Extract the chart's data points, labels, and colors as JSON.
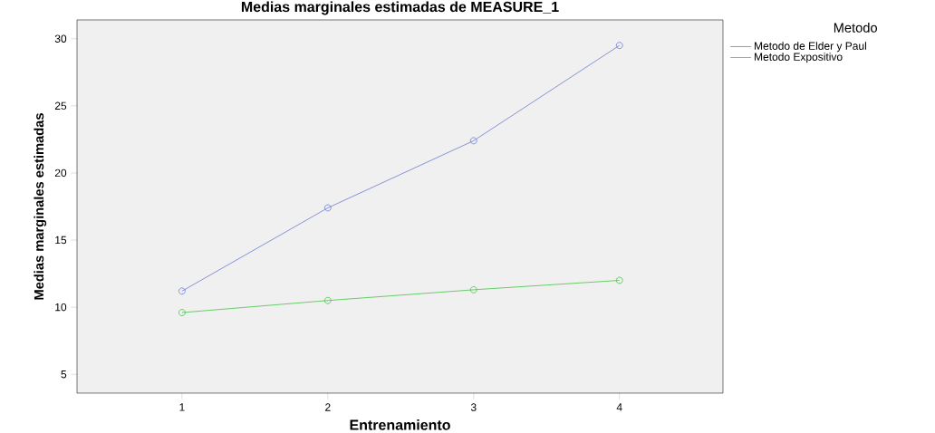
{
  "chart_data": {
    "type": "line",
    "title": "Medias marginales estimadas de MEASURE_1",
    "xlabel": "Entrenamiento",
    "ylabel": "Medias marginales estimadas",
    "legend_title": "Metodo",
    "x": [
      1,
      2,
      3,
      4
    ],
    "series": [
      {
        "name": "Metodo de Elder y Paul",
        "color": "#6b7bd0",
        "values": [
          11.2,
          17.4,
          22.4,
          29.5
        ]
      },
      {
        "name": "Metodo Expositivo",
        "color": "#45c445",
        "values": [
          9.6,
          10.5,
          11.3,
          12.0
        ]
      }
    ],
    "xlim": [
      0.28,
      4.71
    ],
    "ylim": [
      3.6,
      31.4
    ],
    "xticks": [
      1,
      2,
      3,
      4
    ],
    "yticks": [
      5,
      10,
      15,
      20,
      25,
      30
    ],
    "legend": "top right",
    "marker": "circle",
    "line_style": "solid"
  }
}
